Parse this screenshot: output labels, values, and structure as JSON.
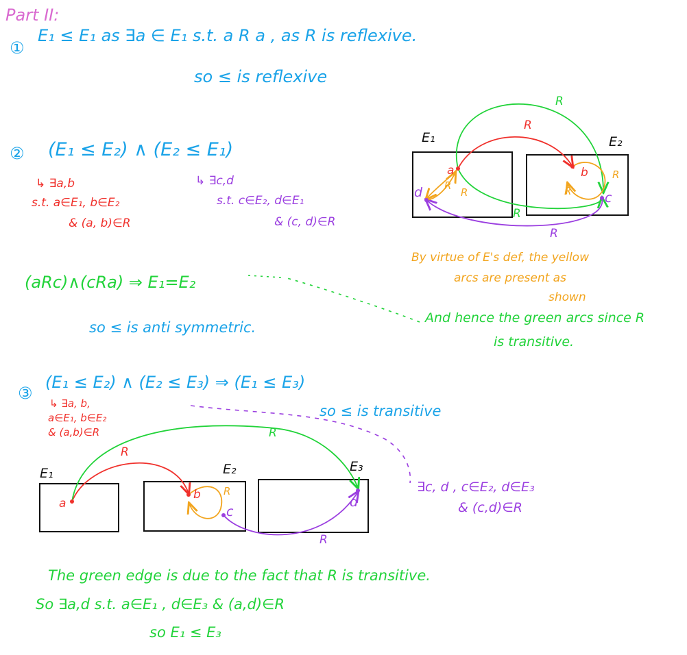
{
  "heading": "Part II:",
  "part1": {
    "marker": "①",
    "line1": "E₁ ≤ E₁   as ∃a ∈ E₁  s.t.  a R a , as R is reflexive.",
    "line2": "so ≤ is reflexive"
  },
  "part2": {
    "marker": "②",
    "statement": "(E₁ ≤ E₂) ∧ (E₂ ≤ E₁)",
    "left_note": {
      "l1": "↳ ∃a,b",
      "l2": "s.t. a∈E₁, b∈E₂",
      "l3": "& (a, b)∈R"
    },
    "right_note": {
      "l1": "↳ ∃c,d",
      "l2": "s.t. c∈E₂, d∈E₁",
      "l3": "& (c, d)∈R"
    },
    "conclusion": "(aRc)∧(cRa) ⇒ E₁=E₂",
    "so_line": "so ≤ is anti symmetric.",
    "green_note": {
      "l1": "And hence the green arcs since R",
      "l2": "is transitive."
    },
    "yellow_note": {
      "l1": "By virtue of E's def, the yellow",
      "l2": "arcs are present as",
      "l3": "shown"
    },
    "diagram": {
      "box1": "E₁",
      "box2": "E₂",
      "pt_a": "a",
      "pt_b": "b",
      "pt_c": "c",
      "pt_d": "d",
      "arc_red": "R",
      "arc_green": "R",
      "arc_green_inner": "R",
      "arc_purple": "R",
      "arc_yellow_1": "R",
      "arc_yellow_2": "R",
      "arc_yellow_3": "R",
      "arc_yellow_4": "R"
    }
  },
  "part3": {
    "marker": "③",
    "statement": "(E₁ ≤ E₂) ∧ (E₂ ≤ E₃) ⇒ (E₁ ≤ E₃)",
    "so_line": "so ≤ is transitive",
    "left_note": {
      "l1": "↳ ∃a, b,",
      "l2": "a∈E₁, b∈E₂",
      "l3": "& (a,b)∈R"
    },
    "right_note": {
      "l1": "∃c, d , c∈E₂, d∈E₃",
      "l2": "& (c,d)∈R"
    },
    "diagram": {
      "box1": "E₁",
      "box2": "E₂",
      "box3": "E₃",
      "pt_a": "a",
      "pt_b": "b",
      "pt_c": "c",
      "pt_d": "d",
      "arc_red": "R",
      "arc_green": "R",
      "arc_purple": "R",
      "arc_yellow": "R"
    },
    "green_text": {
      "l1": "The green edge is due to the fact that R is transitive.",
      "l2": "So ∃a,d  s.t. a∈E₁ , d∈E₃ & (a,d)∈R",
      "l3": "so  E₁ ≤ E₃"
    }
  },
  "colors": {
    "blue": "#1aa3e8",
    "red": "#f0312c",
    "purple": "#9b3fe0",
    "green": "#22d33a",
    "orange": "#f2a51f",
    "black": "#111111"
  }
}
